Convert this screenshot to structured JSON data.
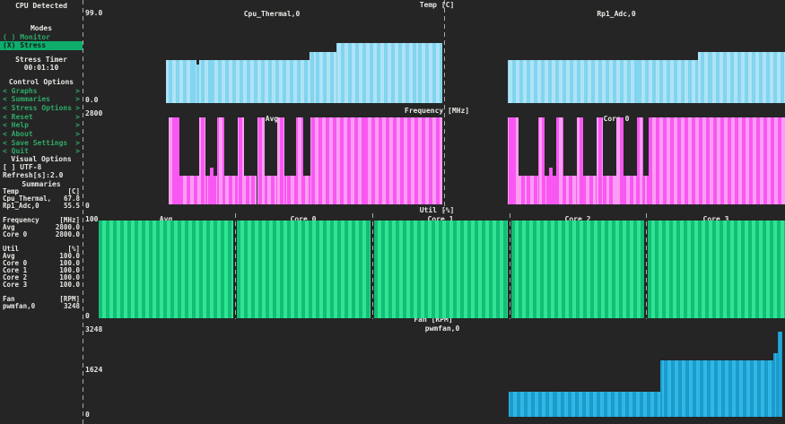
{
  "sidebar": {
    "header": "CPU Detected",
    "modes_title": "Modes",
    "modes": [
      {
        "prefix": "( )",
        "label": "Monitor",
        "selected": false
      },
      {
        "prefix": "(X)",
        "label": "Stress",
        "selected": true
      }
    ],
    "stress_timer_title": "Stress Timer",
    "stress_timer_value": "00:01:10",
    "control_options_title": "Control Options",
    "menu": [
      "Graphs",
      "Summaries",
      "Stress Options",
      "Reset",
      "Help",
      "About",
      "Save Settings",
      "Quit"
    ],
    "visual_options_title": "Visual Options",
    "utf8_option": "[ ] UTF-8",
    "refresh_option": "Refresh[s]:2.0",
    "summaries_title": "Summaries",
    "summaries": [
      {
        "label": "Temp",
        "value": "[C]"
      },
      {
        "label": "Cpu_Thermal,",
        "value": "67.8"
      },
      {
        "label": "Rp1_Adc,0",
        "value": "55.5"
      },
      {
        "label": "",
        "value": ""
      },
      {
        "label": "Frequency",
        "value": "[MHz]"
      },
      {
        "label": "Avg",
        "value": "2800.0"
      },
      {
        "label": "Core 0",
        "value": "2800.0"
      },
      {
        "label": "",
        "value": ""
      },
      {
        "label": "Util",
        "value": "[%]"
      },
      {
        "label": "Avg",
        "value": "100.0"
      },
      {
        "label": "Core 0",
        "value": "100.0"
      },
      {
        "label": "Core 1",
        "value": "100.0"
      },
      {
        "label": "Core 2",
        "value": "100.0"
      },
      {
        "label": "Core 3",
        "value": "100.0"
      },
      {
        "label": "",
        "value": ""
      },
      {
        "label": "Fan",
        "value": "[RPM]"
      },
      {
        "label": "pwmfan,0",
        "value": "3248"
      }
    ]
  },
  "labels": {
    "temp_title": "Temp [C]",
    "temp_left_series": "Cpu_Thermal,0",
    "temp_right_series": "Rp1_Adc,0",
    "freq_title": "Frequency [MHz]",
    "freq_left_series": "Avg",
    "freq_right_series": "Core 0",
    "util_title": "Util [%]",
    "util_sections": [
      "Avg",
      "Core 0",
      "Core 1",
      "Core 2",
      "Core 3"
    ],
    "fan_title": "Fan [RPM]",
    "fan_series": "pwmfan,0",
    "axis": {
      "temp_max": "99.0",
      "temp_min": "0.0",
      "freq_max": "2800",
      "freq_min": "0",
      "util_max": "100",
      "util_min": "0",
      "fan_max": "3248",
      "fan_mid": "1624",
      "fan_min": "0"
    }
  },
  "colors": {
    "background": "#252525",
    "text": "#E8E8E4",
    "menu_green": "#2EA968",
    "highlight_green": "#0EAD6C",
    "temp": [
      "#82D4EF",
      "#AEE3F6"
    ],
    "freq": [
      "#F957F2",
      "#FC9DF4"
    ],
    "util": [
      "#11BE76",
      "#31E393"
    ],
    "fan": [
      "#1C9BCA",
      "#2FB7E6"
    ]
  },
  "chart_data": [
    {
      "id": "temp_left",
      "type": "bar",
      "title": "Temp [C]",
      "series": "Cpu_Thermal,0",
      "unit": "C",
      "ylim": [
        0,
        99
      ],
      "current": 67.8,
      "palette": "temp",
      "segments": [
        {
          "x0": 0.192,
          "x1": 0.281,
          "v": 0.475,
          "value": 47.0
        },
        {
          "x0": 0.281,
          "x1": 0.289,
          "v": 0.43,
          "value": 42.5
        },
        {
          "x0": 0.289,
          "x1": 0.611,
          "v": 0.475,
          "value": 47.0
        },
        {
          "x0": 0.611,
          "x1": 0.69,
          "v": 0.565,
          "value": 56.0
        },
        {
          "x0": 0.69,
          "x1": 1.0,
          "v": 0.66,
          "value": 65.5
        }
      ]
    },
    {
      "id": "temp_right",
      "type": "bar",
      "title": "Temp [C]",
      "series": "Rp1_Adc,0",
      "unit": "C",
      "ylim": [
        0,
        99
      ],
      "current": 55.5,
      "palette": "temp",
      "segments": [
        {
          "x0": 0.178,
          "x1": 0.742,
          "v": 0.475,
          "value": 47.0
        },
        {
          "x0": 0.742,
          "x1": 1.0,
          "v": 0.56,
          "value": 55.5
        }
      ]
    },
    {
      "id": "freq_left",
      "type": "bar",
      "title": "Frequency [MHz]",
      "series": "Avg",
      "unit": "MHz",
      "ylim": [
        0,
        2800
      ],
      "current": 2800.0,
      "palette": "freq",
      "segments": [
        {
          "x0": 0.2,
          "x1": 0.231,
          "v": 1.0,
          "value": 2800
        },
        {
          "x0": 0.231,
          "x1": 0.289,
          "v": 0.33,
          "value": 925
        },
        {
          "x0": 0.289,
          "x1": 0.307,
          "v": 1.0,
          "value": 2800
        },
        {
          "x0": 0.307,
          "x1": 0.319,
          "v": 0.33,
          "value": 925
        },
        {
          "x0": 0.319,
          "x1": 0.329,
          "v": 0.42,
          "value": 1175
        },
        {
          "x0": 0.329,
          "x1": 0.341,
          "v": 0.33,
          "value": 925
        },
        {
          "x0": 0.341,
          "x1": 0.362,
          "v": 1.0,
          "value": 2800
        },
        {
          "x0": 0.362,
          "x1": 0.402,
          "v": 0.33,
          "value": 925
        },
        {
          "x0": 0.402,
          "x1": 0.421,
          "v": 1.0,
          "value": 2800
        },
        {
          "x0": 0.421,
          "x1": 0.459,
          "v": 0.33,
          "value": 925
        },
        {
          "x0": 0.459,
          "x1": 0.48,
          "v": 1.0,
          "value": 2800
        },
        {
          "x0": 0.48,
          "x1": 0.517,
          "v": 0.33,
          "value": 925
        },
        {
          "x0": 0.517,
          "x1": 0.537,
          "v": 1.0,
          "value": 2800
        },
        {
          "x0": 0.537,
          "x1": 0.572,
          "v": 0.33,
          "value": 925
        },
        {
          "x0": 0.572,
          "x1": 0.592,
          "v": 1.0,
          "value": 2800
        },
        {
          "x0": 0.592,
          "x1": 0.614,
          "v": 0.33,
          "value": 925
        },
        {
          "x0": 0.614,
          "x1": 1.0,
          "v": 1.0,
          "value": 2800
        }
      ]
    },
    {
      "id": "freq_right",
      "type": "bar",
      "title": "Frequency [MHz]",
      "series": "Core 0",
      "unit": "MHz",
      "ylim": [
        0,
        2800
      ],
      "current": 2800.0,
      "palette": "freq",
      "segments": [
        {
          "x0": 0.178,
          "x1": 0.21,
          "v": 1.0,
          "value": 2800
        },
        {
          "x0": 0.21,
          "x1": 0.269,
          "v": 0.33,
          "value": 925
        },
        {
          "x0": 0.269,
          "x1": 0.287,
          "v": 1.0,
          "value": 2800
        },
        {
          "x0": 0.287,
          "x1": 0.301,
          "v": 0.33,
          "value": 925
        },
        {
          "x0": 0.301,
          "x1": 0.312,
          "v": 0.42,
          "value": 1175
        },
        {
          "x0": 0.312,
          "x1": 0.322,
          "v": 0.33,
          "value": 925
        },
        {
          "x0": 0.322,
          "x1": 0.343,
          "v": 1.0,
          "value": 2800
        },
        {
          "x0": 0.343,
          "x1": 0.383,
          "v": 0.33,
          "value": 925
        },
        {
          "x0": 0.383,
          "x1": 0.402,
          "v": 1.0,
          "value": 2800
        },
        {
          "x0": 0.402,
          "x1": 0.441,
          "v": 0.33,
          "value": 925
        },
        {
          "x0": 0.441,
          "x1": 0.46,
          "v": 1.0,
          "value": 2800
        },
        {
          "x0": 0.46,
          "x1": 0.5,
          "v": 0.33,
          "value": 925
        },
        {
          "x0": 0.5,
          "x1": 0.521,
          "v": 1.0,
          "value": 2800
        },
        {
          "x0": 0.521,
          "x1": 0.561,
          "v": 0.33,
          "value": 925
        },
        {
          "x0": 0.561,
          "x1": 0.58,
          "v": 1.0,
          "value": 2800
        },
        {
          "x0": 0.58,
          "x1": 0.596,
          "v": 0.33,
          "value": 925
        },
        {
          "x0": 0.596,
          "x1": 1.0,
          "v": 1.0,
          "value": 2800
        }
      ]
    },
    {
      "id": "util_avg",
      "type": "bar",
      "title": "Util [%]",
      "series": "Avg",
      "unit": "%",
      "ylim": [
        0,
        100
      ],
      "current": 100.0,
      "palette": "util",
      "segments": [
        {
          "x0": 0.0,
          "x1": 1.0,
          "v": 1.0,
          "value": 100
        }
      ]
    },
    {
      "id": "util_core0",
      "type": "bar",
      "title": "Util [%]",
      "series": "Core 0",
      "unit": "%",
      "ylim": [
        0,
        100
      ],
      "current": 100.0,
      "palette": "util",
      "segments": [
        {
          "x0": 0.0,
          "x1": 1.0,
          "v": 1.0,
          "value": 100
        }
      ]
    },
    {
      "id": "util_core1",
      "type": "bar",
      "title": "Util [%]",
      "series": "Core 1",
      "unit": "%",
      "ylim": [
        0,
        100
      ],
      "current": 100.0,
      "palette": "util",
      "segments": [
        {
          "x0": 0.0,
          "x1": 1.0,
          "v": 1.0,
          "value": 100
        }
      ]
    },
    {
      "id": "util_core2",
      "type": "bar",
      "title": "Util [%]",
      "series": "Core 2",
      "unit": "%",
      "ylim": [
        0,
        100
      ],
      "current": 100.0,
      "palette": "util",
      "segments": [
        {
          "x0": 0.0,
          "x1": 1.0,
          "v": 1.0,
          "value": 100
        }
      ]
    },
    {
      "id": "util_core3",
      "type": "bar",
      "title": "Util [%]",
      "series": "Core 3",
      "unit": "%",
      "ylim": [
        0,
        100
      ],
      "current": 100.0,
      "palette": "util",
      "segments": [
        {
          "x0": 0.0,
          "x1": 1.0,
          "v": 1.0,
          "value": 100
        }
      ]
    },
    {
      "id": "fan",
      "type": "bar",
      "title": "Fan [RPM]",
      "series": "pwmfan,0",
      "unit": "RPM",
      "ylim": [
        0,
        3248
      ],
      "current": 3248,
      "palette": "fan",
      "segments": [
        {
          "x0": 0.597,
          "x1": 0.818,
          "v": 0.29,
          "value": 940
        },
        {
          "x0": 0.818,
          "x1": 0.983,
          "v": 0.64,
          "value": 2080
        },
        {
          "x0": 0.983,
          "x1": 0.99,
          "v": 0.72,
          "value": 2340
        },
        {
          "x0": 0.99,
          "x1": 0.997,
          "v": 0.97,
          "value": 3150
        }
      ]
    }
  ]
}
